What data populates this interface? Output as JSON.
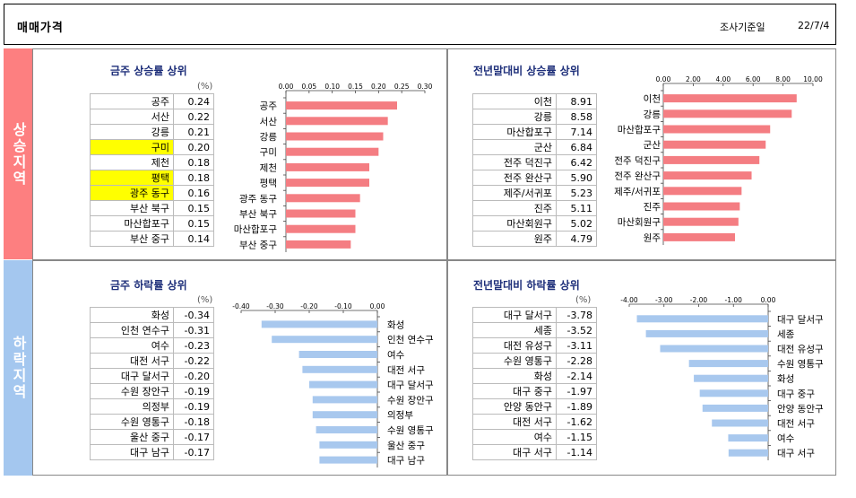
{
  "header": {
    "title": "매매가격",
    "survey_date_label": "조사기준일",
    "survey_date": "22/7/4"
  },
  "sides": {
    "rise": "상승지역",
    "fall": "하락지역"
  },
  "unit": "(%)",
  "panels": {
    "weekly_rise": {
      "title": "금주 상승률 상위"
    },
    "yearly_rise": {
      "title": "전년말대비 상승률 상위"
    },
    "weekly_fall": {
      "title": "금주 하락률 상위"
    },
    "yearly_fall": {
      "title": "전년말대비 하락률 상위"
    }
  },
  "colors": {
    "rise_bar": "#f47d82",
    "fall_bar": "#a8c8ee",
    "rise_side": "#fd7f80",
    "fall_side": "#a4c7ef",
    "highlight": "#ffff00"
  },
  "chart_data": [
    {
      "id": "weekly_rise",
      "type": "bar",
      "orientation": "horizontal",
      "categories": [
        "공주",
        "서산",
        "강릉",
        "구미",
        "제천",
        "평택",
        "광주 동구",
        "부산 북구",
        "마산합포구",
        "부산 중구"
      ],
      "values": [
        0.24,
        0.22,
        0.21,
        0.2,
        0.18,
        0.18,
        0.16,
        0.15,
        0.15,
        0.14
      ],
      "value_labels": [
        "0.24",
        "0.22",
        "0.21",
        "0.20",
        "0.18",
        "0.18",
        "0.16",
        "0.15",
        "0.15",
        "0.14"
      ],
      "highlighted": [
        3,
        5,
        6
      ],
      "xlim": [
        0,
        0.3
      ],
      "ticks": [
        "0.00",
        "0.05",
        "0.10",
        "0.15",
        "0.20",
        "0.25",
        "0.30"
      ]
    },
    {
      "id": "yearly_rise",
      "type": "bar",
      "orientation": "horizontal",
      "categories": [
        "이천",
        "강릉",
        "마산합포구",
        "군산",
        "전주 덕진구",
        "전주 완산구",
        "제주/서귀포",
        "진주",
        "마산회원구",
        "원주"
      ],
      "values": [
        8.91,
        8.58,
        7.14,
        6.84,
        6.42,
        5.9,
        5.23,
        5.11,
        5.02,
        4.79
      ],
      "value_labels": [
        "8.91",
        "8.58",
        "7.14",
        "6.84",
        "6.42",
        "5.90",
        "5.23",
        "5.11",
        "5.02",
        "4.79"
      ],
      "highlighted": [],
      "xlim": [
        0,
        10
      ],
      "ticks": [
        "0.00",
        "2.00",
        "4.00",
        "6.00",
        "8.00",
        "10.00"
      ]
    },
    {
      "id": "weekly_fall",
      "type": "bar",
      "orientation": "horizontal",
      "categories": [
        "화성",
        "인천 연수구",
        "여수",
        "대전 서구",
        "대구 달서구",
        "수원 장안구",
        "의정부",
        "수원 영통구",
        "울산 중구",
        "대구 남구"
      ],
      "values": [
        -0.34,
        -0.31,
        -0.23,
        -0.22,
        -0.2,
        -0.19,
        -0.19,
        -0.18,
        -0.17,
        -0.17
      ],
      "value_labels": [
        "-0.34",
        "-0.31",
        "-0.23",
        "-0.22",
        "-0.20",
        "-0.19",
        "-0.19",
        "-0.18",
        "-0.17",
        "-0.17"
      ],
      "highlighted": [],
      "xlim": [
        -0.4,
        0
      ],
      "ticks": [
        "-0.40",
        "-0.30",
        "-0.20",
        "-0.10",
        "0.00"
      ]
    },
    {
      "id": "yearly_fall",
      "type": "bar",
      "orientation": "horizontal",
      "categories": [
        "대구 달서구",
        "세종",
        "대전 유성구",
        "수원 영통구",
        "화성",
        "대구 중구",
        "안양 동안구",
        "대전 서구",
        "여수",
        "대구 서구"
      ],
      "values": [
        -3.78,
        -3.52,
        -3.11,
        -2.28,
        -2.14,
        -1.97,
        -1.89,
        -1.62,
        -1.15,
        -1.14
      ],
      "value_labels": [
        "-3.78",
        "-3.52",
        "-3.11",
        "-2.28",
        "-2.14",
        "-1.97",
        "-1.89",
        "-1.62",
        "-1.15",
        "-1.14"
      ],
      "highlighted": [],
      "xlim": [
        -4,
        0
      ],
      "ticks": [
        "-4.00",
        "-3.00",
        "-2.00",
        "-1.00",
        "0.00"
      ]
    }
  ]
}
